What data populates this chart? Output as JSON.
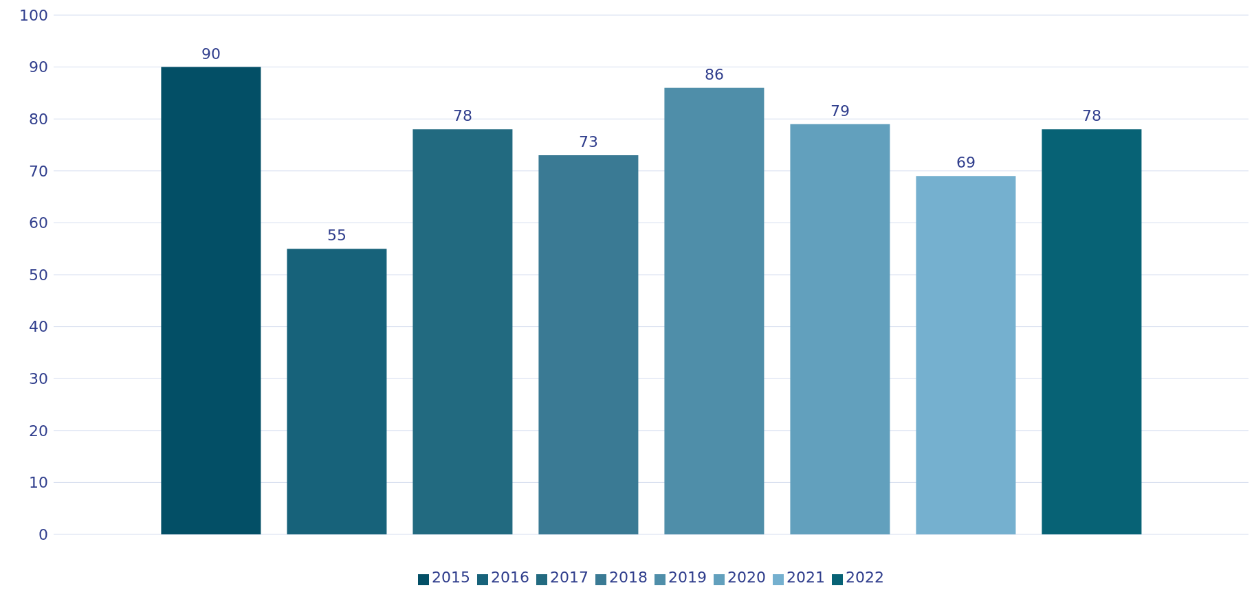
{
  "chart_data": {
    "type": "bar",
    "categories": [
      null
    ],
    "series": [
      {
        "name": "2015",
        "color": "#034f66",
        "values": [
          90
        ]
      },
      {
        "name": "2016",
        "color": "#17627a",
        "values": [
          55
        ]
      },
      {
        "name": "2017",
        "color": "#226a80",
        "values": [
          78
        ]
      },
      {
        "name": "2018",
        "color": "#3a7a94",
        "values": [
          73
        ]
      },
      {
        "name": "2019",
        "color": "#4f8ea9",
        "values": [
          86
        ]
      },
      {
        "name": "2020",
        "color": "#62a0bd",
        "values": [
          79
        ]
      },
      {
        "name": "2021",
        "color": "#75b0cf",
        "values": [
          69
        ]
      },
      {
        "name": "2022",
        "color": "#076275",
        "values": [
          78
        ]
      }
    ],
    "ylim": [
      0,
      100
    ],
    "yticks": [
      0,
      10,
      20,
      30,
      40,
      50,
      60,
      70,
      80,
      90,
      100
    ],
    "grid": "y",
    "legend": "bottom",
    "data_labels": true
  }
}
